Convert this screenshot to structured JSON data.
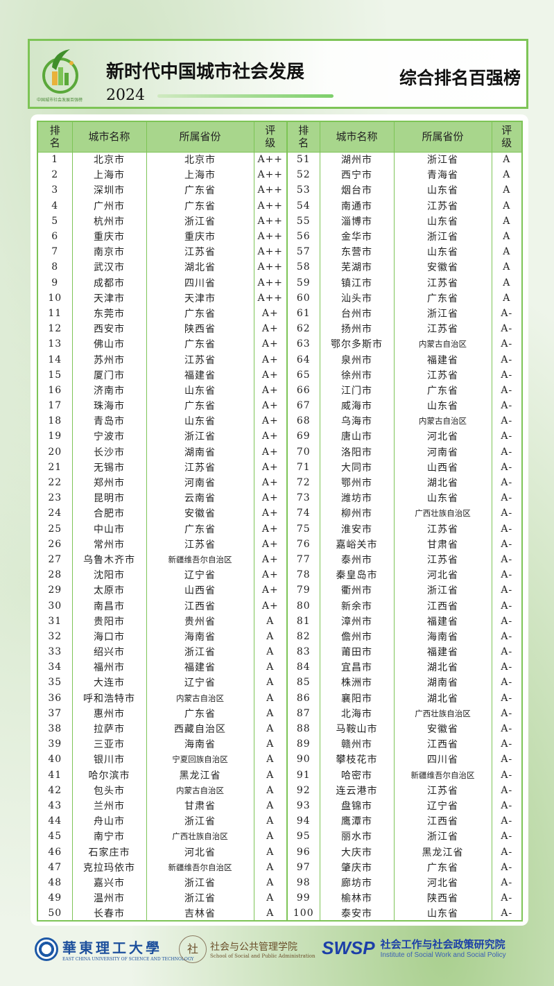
{
  "header": {
    "title": "新时代中国城市社会发展",
    "year": "2024",
    "subtitle": "综合排名百强榜",
    "logo_text": "中国城市社会发展百强榜"
  },
  "columns": [
    "排名",
    "城市名称",
    "所属省份",
    "评级"
  ],
  "rows": [
    [
      "1",
      "北京市",
      "北京市",
      "A++"
    ],
    [
      "2",
      "上海市",
      "上海市",
      "A++"
    ],
    [
      "3",
      "深圳市",
      "广东省",
      "A++"
    ],
    [
      "4",
      "广州市",
      "广东省",
      "A++"
    ],
    [
      "5",
      "杭州市",
      "浙江省",
      "A++"
    ],
    [
      "6",
      "重庆市",
      "重庆市",
      "A++"
    ],
    [
      "7",
      "南京市",
      "江苏省",
      "A++"
    ],
    [
      "8",
      "武汉市",
      "湖北省",
      "A++"
    ],
    [
      "9",
      "成都市",
      "四川省",
      "A++"
    ],
    [
      "10",
      "天津市",
      "天津市",
      "A++"
    ],
    [
      "11",
      "东莞市",
      "广东省",
      "A+"
    ],
    [
      "12",
      "西安市",
      "陕西省",
      "A+"
    ],
    [
      "13",
      "佛山市",
      "广东省",
      "A+"
    ],
    [
      "14",
      "苏州市",
      "江苏省",
      "A+"
    ],
    [
      "15",
      "厦门市",
      "福建省",
      "A+"
    ],
    [
      "16",
      "济南市",
      "山东省",
      "A+"
    ],
    [
      "17",
      "珠海市",
      "广东省",
      "A+"
    ],
    [
      "18",
      "青岛市",
      "山东省",
      "A+"
    ],
    [
      "19",
      "宁波市",
      "浙江省",
      "A+"
    ],
    [
      "20",
      "长沙市",
      "湖南省",
      "A+"
    ],
    [
      "21",
      "无锡市",
      "江苏省",
      "A+"
    ],
    [
      "22",
      "郑州市",
      "河南省",
      "A+"
    ],
    [
      "23",
      "昆明市",
      "云南省",
      "A+"
    ],
    [
      "24",
      "合肥市",
      "安徽省",
      "A+"
    ],
    [
      "25",
      "中山市",
      "广东省",
      "A+"
    ],
    [
      "26",
      "常州市",
      "江苏省",
      "A+"
    ],
    [
      "27",
      "乌鲁木齐市",
      "新疆维吾尔自治区",
      "A+"
    ],
    [
      "28",
      "沈阳市",
      "辽宁省",
      "A+"
    ],
    [
      "29",
      "太原市",
      "山西省",
      "A+"
    ],
    [
      "30",
      "南昌市",
      "江西省",
      "A+"
    ],
    [
      "31",
      "贵阳市",
      "贵州省",
      "A"
    ],
    [
      "32",
      "海口市",
      "海南省",
      "A"
    ],
    [
      "33",
      "绍兴市",
      "浙江省",
      "A"
    ],
    [
      "34",
      "福州市",
      "福建省",
      "A"
    ],
    [
      "35",
      "大连市",
      "辽宁省",
      "A"
    ],
    [
      "36",
      "呼和浩特市",
      "内蒙古自治区",
      "A"
    ],
    [
      "37",
      "惠州市",
      "广东省",
      "A"
    ],
    [
      "38",
      "拉萨市",
      "西藏自治区",
      "A"
    ],
    [
      "39",
      "三亚市",
      "海南省",
      "A"
    ],
    [
      "40",
      "银川市",
      "宁夏回族自治区",
      "A"
    ],
    [
      "41",
      "哈尔滨市",
      "黑龙江省",
      "A"
    ],
    [
      "42",
      "包头市",
      "内蒙古自治区",
      "A"
    ],
    [
      "43",
      "兰州市",
      "甘肃省",
      "A"
    ],
    [
      "44",
      "舟山市",
      "浙江省",
      "A"
    ],
    [
      "45",
      "南宁市",
      "广西壮族自治区",
      "A"
    ],
    [
      "46",
      "石家庄市",
      "河北省",
      "A"
    ],
    [
      "47",
      "克拉玛依市",
      "新疆维吾尔自治区",
      "A"
    ],
    [
      "48",
      "嘉兴市",
      "浙江省",
      "A"
    ],
    [
      "49",
      "温州市",
      "浙江省",
      "A"
    ],
    [
      "50",
      "长春市",
      "吉林省",
      "A"
    ],
    [
      "51",
      "湖州市",
      "浙江省",
      "A"
    ],
    [
      "52",
      "西宁市",
      "青海省",
      "A"
    ],
    [
      "53",
      "烟台市",
      "山东省",
      "A"
    ],
    [
      "54",
      "南通市",
      "江苏省",
      "A"
    ],
    [
      "55",
      "淄博市",
      "山东省",
      "A"
    ],
    [
      "56",
      "金华市",
      "浙江省",
      "A"
    ],
    [
      "57",
      "东营市",
      "山东省",
      "A"
    ],
    [
      "58",
      "芜湖市",
      "安徽省",
      "A"
    ],
    [
      "59",
      "镇江市",
      "江苏省",
      "A"
    ],
    [
      "60",
      "汕头市",
      "广东省",
      "A"
    ],
    [
      "61",
      "台州市",
      "浙江省",
      "A-"
    ],
    [
      "62",
      "扬州市",
      "江苏省",
      "A-"
    ],
    [
      "63",
      "鄂尔多斯市",
      "内蒙古自治区",
      "A-"
    ],
    [
      "64",
      "泉州市",
      "福建省",
      "A-"
    ],
    [
      "65",
      "徐州市",
      "江苏省",
      "A-"
    ],
    [
      "66",
      "江门市",
      "广东省",
      "A-"
    ],
    [
      "67",
      "威海市",
      "山东省",
      "A-"
    ],
    [
      "68",
      "乌海市",
      "内蒙古自治区",
      "A-"
    ],
    [
      "69",
      "唐山市",
      "河北省",
      "A-"
    ],
    [
      "70",
      "洛阳市",
      "河南省",
      "A-"
    ],
    [
      "71",
      "大同市",
      "山西省",
      "A-"
    ],
    [
      "72",
      "鄂州市",
      "湖北省",
      "A-"
    ],
    [
      "73",
      "潍坊市",
      "山东省",
      "A-"
    ],
    [
      "74",
      "柳州市",
      "广西壮族自治区",
      "A-"
    ],
    [
      "75",
      "淮安市",
      "江苏省",
      "A-"
    ],
    [
      "76",
      "嘉峪关市",
      "甘肃省",
      "A-"
    ],
    [
      "77",
      "泰州市",
      "江苏省",
      "A-"
    ],
    [
      "78",
      "秦皇岛市",
      "河北省",
      "A-"
    ],
    [
      "79",
      "衢州市",
      "浙江省",
      "A-"
    ],
    [
      "80",
      "新余市",
      "江西省",
      "A-"
    ],
    [
      "81",
      "漳州市",
      "福建省",
      "A-"
    ],
    [
      "82",
      "儋州市",
      "海南省",
      "A-"
    ],
    [
      "83",
      "莆田市",
      "福建省",
      "A-"
    ],
    [
      "84",
      "宜昌市",
      "湖北省",
      "A-"
    ],
    [
      "85",
      "株洲市",
      "湖南省",
      "A-"
    ],
    [
      "86",
      "襄阳市",
      "湖北省",
      "A-"
    ],
    [
      "87",
      "北海市",
      "广西壮族自治区",
      "A-"
    ],
    [
      "88",
      "马鞍山市",
      "安徽省",
      "A-"
    ],
    [
      "89",
      "赣州市",
      "江西省",
      "A-"
    ],
    [
      "90",
      "攀枝花市",
      "四川省",
      "A-"
    ],
    [
      "91",
      "哈密市",
      "新疆维吾尔自治区",
      "A-"
    ],
    [
      "92",
      "连云港市",
      "江苏省",
      "A-"
    ],
    [
      "93",
      "盘锦市",
      "辽宁省",
      "A-"
    ],
    [
      "94",
      "鹰潭市",
      "江西省",
      "A-"
    ],
    [
      "95",
      "丽水市",
      "浙江省",
      "A-"
    ],
    [
      "96",
      "大庆市",
      "黑龙江省",
      "A-"
    ],
    [
      "97",
      "肇庆市",
      "广东省",
      "A-"
    ],
    [
      "98",
      "廊坊市",
      "河北省",
      "A-"
    ],
    [
      "99",
      "榆林市",
      "陕西省",
      "A-"
    ],
    [
      "100",
      "泰安市",
      "山东省",
      "A-"
    ]
  ],
  "footer": {
    "ecust_cn": "華東理工大學",
    "ecust_en": "EAST CHINA UNIVERSITY OF SCIENCE AND TECHNOLOGY",
    "school_cn": "社会与公共管理学院",
    "school_en": "School of Social and Public Administration",
    "swsp_logo": "SWSP",
    "institute_cn": "社会工作与社会政策研究院",
    "institute_en": "Institute of Social Work and Social Policy"
  },
  "colors": {
    "accent": "#7dc456",
    "header_fill": "#a8d68c"
  }
}
